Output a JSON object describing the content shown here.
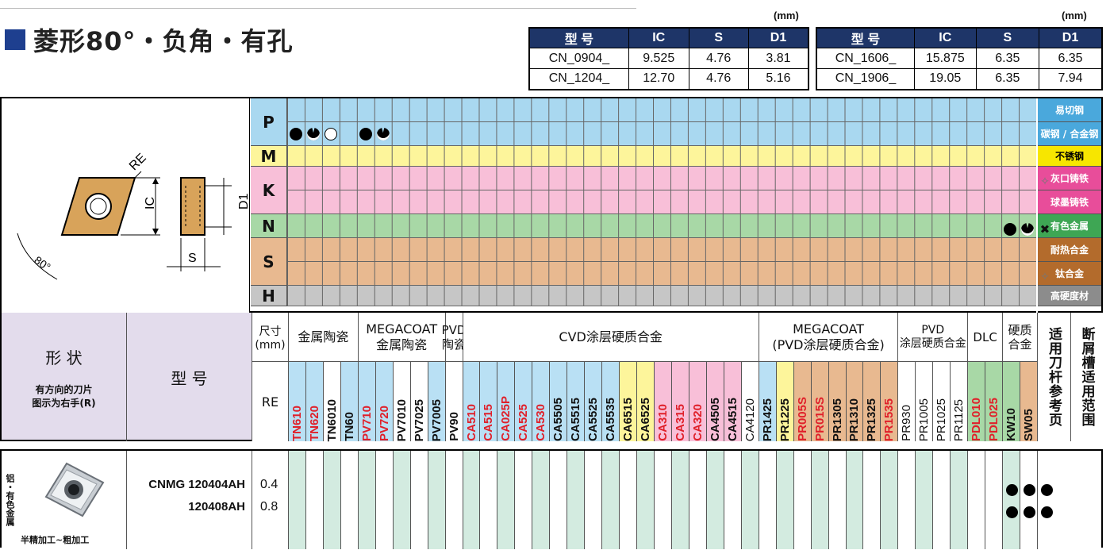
{
  "page": {
    "title": "菱形80°・负角・有孔",
    "unit_left": "(mm)",
    "unit_right": "(mm)"
  },
  "spec_left": {
    "headers": [
      "型 号",
      "IC",
      "S",
      "D1"
    ],
    "rows": [
      [
        "CN_0904_",
        "9.525",
        "4.76",
        "3.81"
      ],
      [
        "CN_1204_",
        "12.70",
        "4.76",
        "5.16"
      ]
    ]
  },
  "spec_right": {
    "headers": [
      "型 号",
      "IC",
      "S",
      "D1"
    ],
    "rows": [
      [
        "CN_1606_",
        "15.875",
        "6.35",
        "6.35"
      ],
      [
        "CN_1906_",
        "19.05",
        "6.35",
        "7.94"
      ]
    ]
  },
  "diagram": {
    "re": "RE",
    "ic": "IC",
    "d1": "D1",
    "s": "S",
    "angle": "80°"
  },
  "materials": [
    {
      "letter": "P",
      "color": "#a9d8f0",
      "rows": [
        "易切钢",
        "碳钢 / 合金钢"
      ],
      "label_bg": "#4aa8dc"
    },
    {
      "letter": "M",
      "color": "#fdf59b",
      "rows": [
        "不锈钢"
      ],
      "label_bg": "#f7e600"
    },
    {
      "letter": "K",
      "color": "#f8bfd8",
      "rows": [
        "灰口铸铁",
        "球墨铸铁"
      ],
      "label_bg": "#e84d9a"
    },
    {
      "letter": "N",
      "color": "#a8d8a6",
      "rows": [
        "有色金属"
      ],
      "label_bg": "#3ea654"
    },
    {
      "letter": "S",
      "color": "#e8b990",
      "rows": [
        "耐热合金",
        "钛合金"
      ],
      "label_bg": "#b36b2c"
    },
    {
      "letter": "H",
      "color": "#c6c6c6",
      "rows": [
        "高硬度材"
      ],
      "label_bg": "#8c8c8c"
    }
  ],
  "header": {
    "shape_label": "形 状",
    "shape_note1": "有方向的刀片",
    "shape_note2": "图示为右手(R)",
    "model_label": "型 号",
    "size_label": "尺寸\n(mm)",
    "re_label": "RE",
    "groups": [
      "金属陶瓷",
      "MEGACOAT\n金属陶瓷",
      "PVD\n陶瓷",
      "CVD涂层硬质合金",
      "MEGACOAT\n(PVD涂层硬质合金)",
      "PVD\n涂层硬质合金",
      "DLC",
      "硬质\n合金"
    ],
    "col_holder": "适用刀杆参考页",
    "col_breaker": "断屑槽适用范围"
  },
  "grades": [
    {
      "name": "TN610",
      "color": "red",
      "bg": "#b9e0f4"
    },
    {
      "name": "TN620",
      "color": "red",
      "bg": "#b9e0f4"
    },
    {
      "name": "TN6010",
      "color": "black",
      "bg": "#ffffff"
    },
    {
      "name": "TN60",
      "color": "black",
      "bg": "#b9e0f4",
      "bold": true
    },
    {
      "name": "PV710",
      "color": "red",
      "bg": "#b9e0f4"
    },
    {
      "name": "PV720",
      "color": "red",
      "bg": "#b9e0f4"
    },
    {
      "name": "PV7010",
      "color": "black",
      "bg": "#ffffff"
    },
    {
      "name": "PV7025",
      "color": "black",
      "bg": "#ffffff"
    },
    {
      "name": "PV7005",
      "color": "black",
      "bg": "#b9e0f4",
      "bold": true
    },
    {
      "name": "PV90",
      "color": "black",
      "bg": "#ffffff"
    },
    {
      "name": "CA510",
      "color": "red",
      "bg": "#b9e0f4"
    },
    {
      "name": "CA515",
      "color": "red",
      "bg": "#b9e0f4"
    },
    {
      "name": "CA025P",
      "color": "red",
      "bg": "#b9e0f4"
    },
    {
      "name": "CA525",
      "color": "red",
      "bg": "#b9e0f4"
    },
    {
      "name": "CA530",
      "color": "red",
      "bg": "#b9e0f4"
    },
    {
      "name": "CA5505",
      "color": "black",
      "bg": "#b9e0f4"
    },
    {
      "name": "CA5515",
      "color": "black",
      "bg": "#b9e0f4"
    },
    {
      "name": "CA5525",
      "color": "black",
      "bg": "#b9e0f4"
    },
    {
      "name": "CA5535",
      "color": "black",
      "bg": "#b9e0f4"
    },
    {
      "name": "CA6515",
      "color": "black",
      "bg": "#fdf59b"
    },
    {
      "name": "CA6525",
      "color": "black",
      "bg": "#fdf59b"
    },
    {
      "name": "CA310",
      "color": "red",
      "bg": "#f8bfd8"
    },
    {
      "name": "CA315",
      "color": "red",
      "bg": "#f8bfd8"
    },
    {
      "name": "CA320",
      "color": "red",
      "bg": "#f8bfd8"
    },
    {
      "name": "CA4505",
      "color": "black",
      "bg": "#f8bfd8"
    },
    {
      "name": "CA4515",
      "color": "black",
      "bg": "#f8bfd8"
    },
    {
      "name": "CA4120",
      "color": "black",
      "bg": "#ffffff",
      "light": true
    },
    {
      "name": "PR1425",
      "color": "black",
      "bg": "#b9e0f4"
    },
    {
      "name": "PR1225",
      "color": "black",
      "bg": "#fdf59b"
    },
    {
      "name": "PR005S",
      "color": "red",
      "bg": "#e8b990"
    },
    {
      "name": "PR015S",
      "color": "red",
      "bg": "#e8b990"
    },
    {
      "name": "PR1305",
      "color": "black",
      "bg": "#e8b990"
    },
    {
      "name": "PR1310",
      "color": "black",
      "bg": "#e8b990"
    },
    {
      "name": "PR1325",
      "color": "black",
      "bg": "#e8b990"
    },
    {
      "name": "PR1535",
      "color": "red",
      "bg": "#e8b990"
    },
    {
      "name": "PR930",
      "color": "black",
      "bg": "#ffffff",
      "light": true
    },
    {
      "name": "PR1005",
      "color": "black",
      "bg": "#ffffff",
      "light": true
    },
    {
      "name": "PR1025",
      "color": "black",
      "bg": "#ffffff",
      "light": true
    },
    {
      "name": "PR1125",
      "color": "black",
      "bg": "#ffffff",
      "light": true
    },
    {
      "name": "PDL010",
      "color": "red",
      "bg": "#a8d8a6"
    },
    {
      "name": "PDL025",
      "color": "red",
      "bg": "#a8d8a6"
    },
    {
      "name": "KW10",
      "color": "black",
      "bg": "#a8d8a6"
    },
    {
      "name": "SW05",
      "color": "black",
      "bg": "#e8b990"
    }
  ],
  "product": {
    "side_label": "铝・有色金属",
    "model1": "CNMG 120404AH",
    "model2": "120408AH",
    "re1": "0.4",
    "re2": "0.8",
    "caption": "半精加工~粗加工"
  }
}
